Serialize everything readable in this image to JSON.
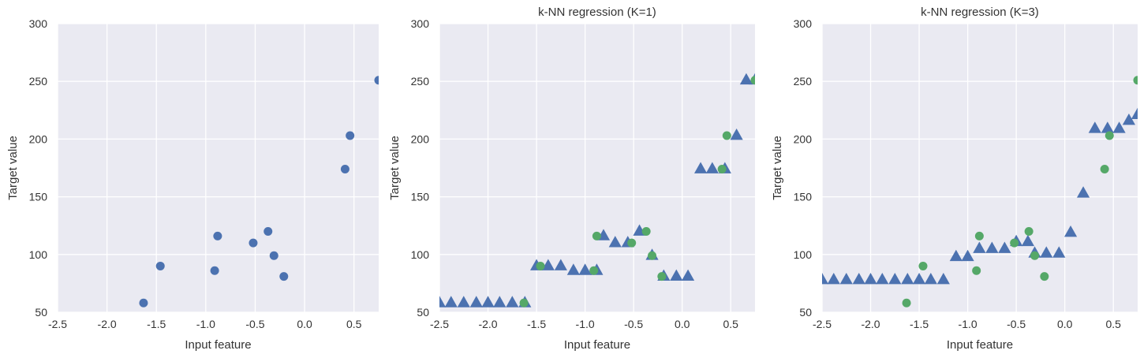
{
  "colors": {
    "train": "#4c72b0",
    "pred": "#4c72b0",
    "target": "#55a868",
    "axes_bg": "#eaeaf2",
    "grid": "#ffffff"
  },
  "chart_data": [
    {
      "type": "scatter",
      "title": "",
      "xlabel": "Input feature",
      "ylabel": "Target value",
      "xlim": [
        -2.5,
        0.75
      ],
      "ylim": [
        50,
        300
      ],
      "xticks": [
        "-2.5",
        "-2.0",
        "-1.5",
        "-1.0",
        "-0.5",
        "0.0",
        "0.5"
      ],
      "yticks": [
        "50",
        "100",
        "150",
        "200",
        "250",
        "300"
      ],
      "grid": true,
      "series": [
        {
          "marker": "circle",
          "color": "#4c72b0",
          "x": [
            -1.63,
            -1.46,
            -0.91,
            -0.88,
            -0.52,
            -0.37,
            -0.31,
            -0.21,
            0.41,
            0.46,
            0.75
          ],
          "y": [
            58,
            90,
            86,
            116,
            110,
            120,
            99,
            81,
            174,
            203,
            251
          ]
        }
      ]
    },
    {
      "type": "scatter",
      "title": "k-NN regression (K=1)",
      "xlabel": "Input feature",
      "ylabel": "Target value",
      "xlim": [
        -2.5,
        0.75
      ],
      "ylim": [
        50,
        300
      ],
      "xticks": [
        "-2.5",
        "-2.0",
        "-1.5",
        "-1.0",
        "-0.5",
        "0.0",
        "0.5"
      ],
      "yticks": [
        "50",
        "100",
        "150",
        "200",
        "250",
        "300"
      ],
      "grid": true,
      "series": [
        {
          "marker": "triangle",
          "color": "#4c72b0",
          "x": [
            -2.5,
            -2.38,
            -2.25,
            -2.12,
            -2.0,
            -1.88,
            -1.75,
            -1.62,
            -1.5,
            -1.38,
            -1.25,
            -1.12,
            -1.0,
            -0.88,
            -0.81,
            -0.69,
            -0.56,
            -0.44,
            -0.31,
            -0.19,
            -0.06,
            0.06,
            0.19,
            0.31,
            0.44,
            0.56,
            0.66,
            0.75
          ],
          "y": [
            58,
            58,
            58,
            58,
            58,
            58,
            58,
            58,
            90,
            90,
            90,
            86,
            86,
            86,
            116,
            110,
            110,
            120,
            99,
            81,
            81,
            81,
            174,
            174,
            174,
            203,
            251,
            251
          ]
        },
        {
          "marker": "circle",
          "color": "#55a868",
          "x": [
            -1.63,
            -1.46,
            -0.91,
            -0.88,
            -0.52,
            -0.37,
            -0.31,
            -0.21,
            0.41,
            0.46,
            0.75
          ],
          "y": [
            58,
            90,
            86,
            116,
            110,
            120,
            99,
            81,
            174,
            203,
            251
          ]
        }
      ]
    },
    {
      "type": "scatter",
      "title": "k-NN regression (K=3)",
      "xlabel": "Input feature",
      "ylabel": "Target value",
      "xlim": [
        -2.5,
        0.75
      ],
      "ylim": [
        50,
        300
      ],
      "xticks": [
        "-2.5",
        "-2.0",
        "-1.5",
        "-1.0",
        "-0.5",
        "0.0",
        "0.5"
      ],
      "yticks": [
        "50",
        "100",
        "150",
        "200",
        "250",
        "300"
      ],
      "grid": true,
      "series": [
        {
          "marker": "triangle",
          "color": "#4c72b0",
          "x": [
            -2.5,
            -2.38,
            -2.25,
            -2.12,
            -2.0,
            -1.88,
            -1.75,
            -1.62,
            -1.5,
            -1.38,
            -1.25,
            -1.12,
            -1.0,
            -0.88,
            -0.75,
            -0.62,
            -0.5,
            -0.38,
            -0.31,
            -0.19,
            -0.06,
            0.06,
            0.19,
            0.31,
            0.44,
            0.56,
            0.66,
            0.75
          ],
          "y": [
            78,
            78,
            78,
            78,
            78,
            78,
            78,
            78,
            78,
            78,
            78,
            98,
            98,
            105,
            105,
            105,
            111,
            111,
            101,
            101,
            101,
            119,
            153,
            209,
            209,
            209,
            216,
            221
          ]
        },
        {
          "marker": "circle",
          "color": "#55a868",
          "x": [
            -1.63,
            -1.46,
            -0.91,
            -0.88,
            -0.52,
            -0.37,
            -0.31,
            -0.21,
            0.41,
            0.46,
            0.75
          ],
          "y": [
            58,
            90,
            86,
            116,
            110,
            120,
            99,
            81,
            174,
            203,
            251
          ]
        }
      ]
    }
  ]
}
